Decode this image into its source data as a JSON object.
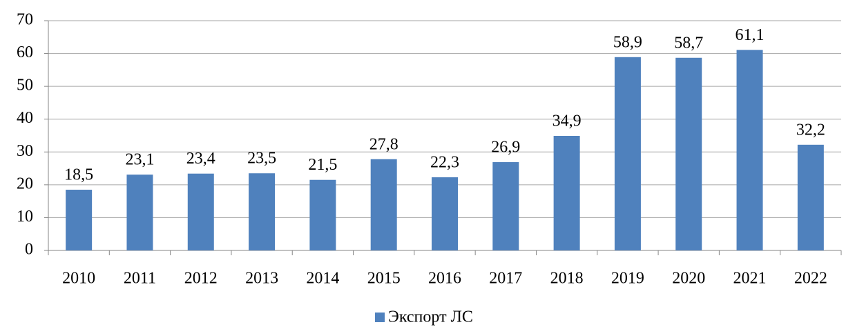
{
  "chart_data": {
    "type": "bar",
    "categories": [
      "2010",
      "2011",
      "2012",
      "2013",
      "2014",
      "2015",
      "2016",
      "2017",
      "2018",
      "2019",
      "2020",
      "2021",
      "2022"
    ],
    "series": [
      {
        "name": "Экспорт ЛС",
        "color": "#4f81bd",
        "values": [
          18.5,
          23.1,
          23.4,
          23.5,
          21.5,
          27.8,
          22.3,
          26.9,
          34.9,
          58.9,
          58.7,
          61.1,
          32.2
        ],
        "value_labels": [
          "18,5",
          "23,1",
          "23,4",
          "23,5",
          "21,5",
          "27,8",
          "22,3",
          "26,9",
          "34,9",
          "58,9",
          "58,7",
          "61,1",
          "32,2"
        ]
      }
    ],
    "ylim": [
      0,
      70
    ],
    "yticks": [
      0,
      10,
      20,
      30,
      40,
      50,
      60,
      70
    ],
    "grid": true,
    "legend": "bottom"
  }
}
